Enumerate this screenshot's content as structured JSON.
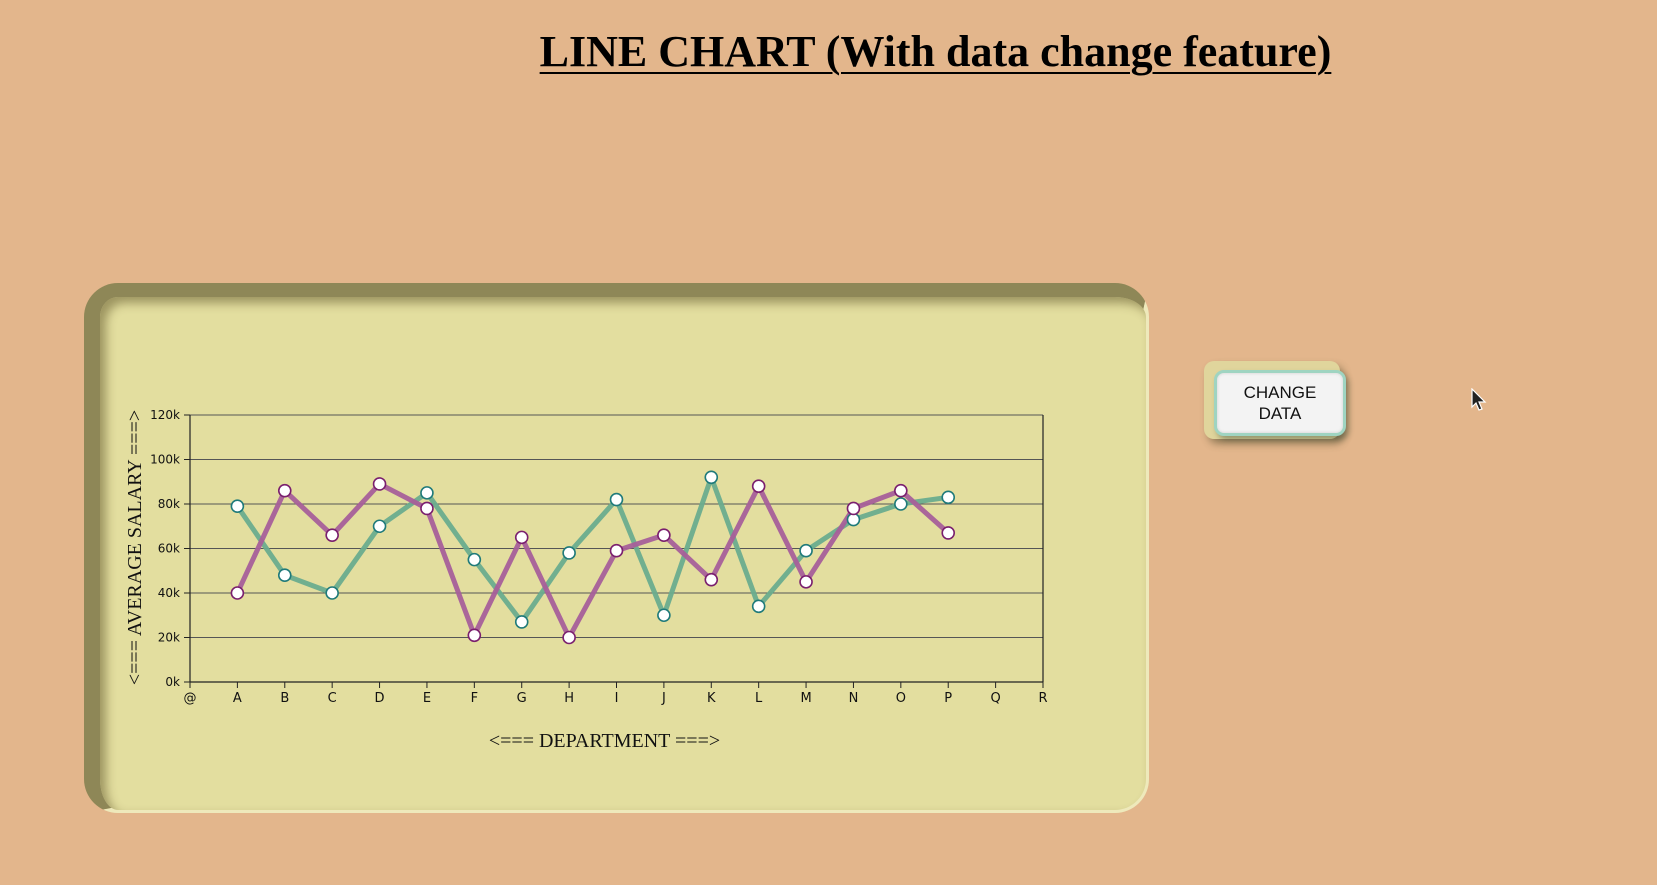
{
  "page_title": "LINE CHART (With data change feature)",
  "button": {
    "label": "CHANGE DATA"
  },
  "colors": {
    "background": "#e3b68c",
    "card": "#e3de9f",
    "series_teal": "#6aac8e",
    "series_purple": "#a65f9a",
    "marker_fill": "#ffffff"
  },
  "chart_data": {
    "type": "line",
    "xlabel": "<=== DEPARTMENT ===>",
    "ylabel": "<=== AVERAGE SALARY ===>",
    "categories": [
      "@",
      "A",
      "B",
      "C",
      "D",
      "E",
      "F",
      "G",
      "H",
      "I",
      "J",
      "K",
      "L",
      "M",
      "N",
      "O",
      "P",
      "Q",
      "R"
    ],
    "ylim": [
      0,
      120000
    ],
    "yticks": [
      0,
      20000,
      40000,
      60000,
      80000,
      100000,
      120000
    ],
    "ytick_labels": [
      "0k",
      "20k",
      "40k",
      "60k",
      "80k",
      "100k",
      "120k"
    ],
    "grid": "horizontal",
    "series": [
      {
        "color": "#6aac8e",
        "marker_stroke": "#1f7a7a",
        "points": [
          {
            "x": "A",
            "y": 79000
          },
          {
            "x": "B",
            "y": 48000
          },
          {
            "x": "C",
            "y": 40000
          },
          {
            "x": "D",
            "y": 70000
          },
          {
            "x": "E",
            "y": 85000
          },
          {
            "x": "F",
            "y": 55000
          },
          {
            "x": "G",
            "y": 27000
          },
          {
            "x": "H",
            "y": 58000
          },
          {
            "x": "I",
            "y": 82000
          },
          {
            "x": "J",
            "y": 30000
          },
          {
            "x": "K",
            "y": 92000
          },
          {
            "x": "L",
            "y": 34000
          },
          {
            "x": "M",
            "y": 59000
          },
          {
            "x": "N",
            "y": 73000
          },
          {
            "x": "O",
            "y": 80000
          },
          {
            "x": "P",
            "y": 83000
          }
        ]
      },
      {
        "color": "#a65f9a",
        "marker_stroke": "#7a1f6e",
        "points": [
          {
            "x": "A",
            "y": 40000
          },
          {
            "x": "B",
            "y": 86000
          },
          {
            "x": "C",
            "y": 66000
          },
          {
            "x": "D",
            "y": 89000
          },
          {
            "x": "E",
            "y": 78000
          },
          {
            "x": "F",
            "y": 21000
          },
          {
            "x": "G",
            "y": 65000
          },
          {
            "x": "H",
            "y": 20000
          },
          {
            "x": "I",
            "y": 59000
          },
          {
            "x": "J",
            "y": 66000
          },
          {
            "x": "K",
            "y": 46000
          },
          {
            "x": "L",
            "y": 88000
          },
          {
            "x": "M",
            "y": 45000
          },
          {
            "x": "N",
            "y": 78000
          },
          {
            "x": "O",
            "y": 86000
          },
          {
            "x": "P",
            "y": 67000
          }
        ]
      }
    ]
  }
}
